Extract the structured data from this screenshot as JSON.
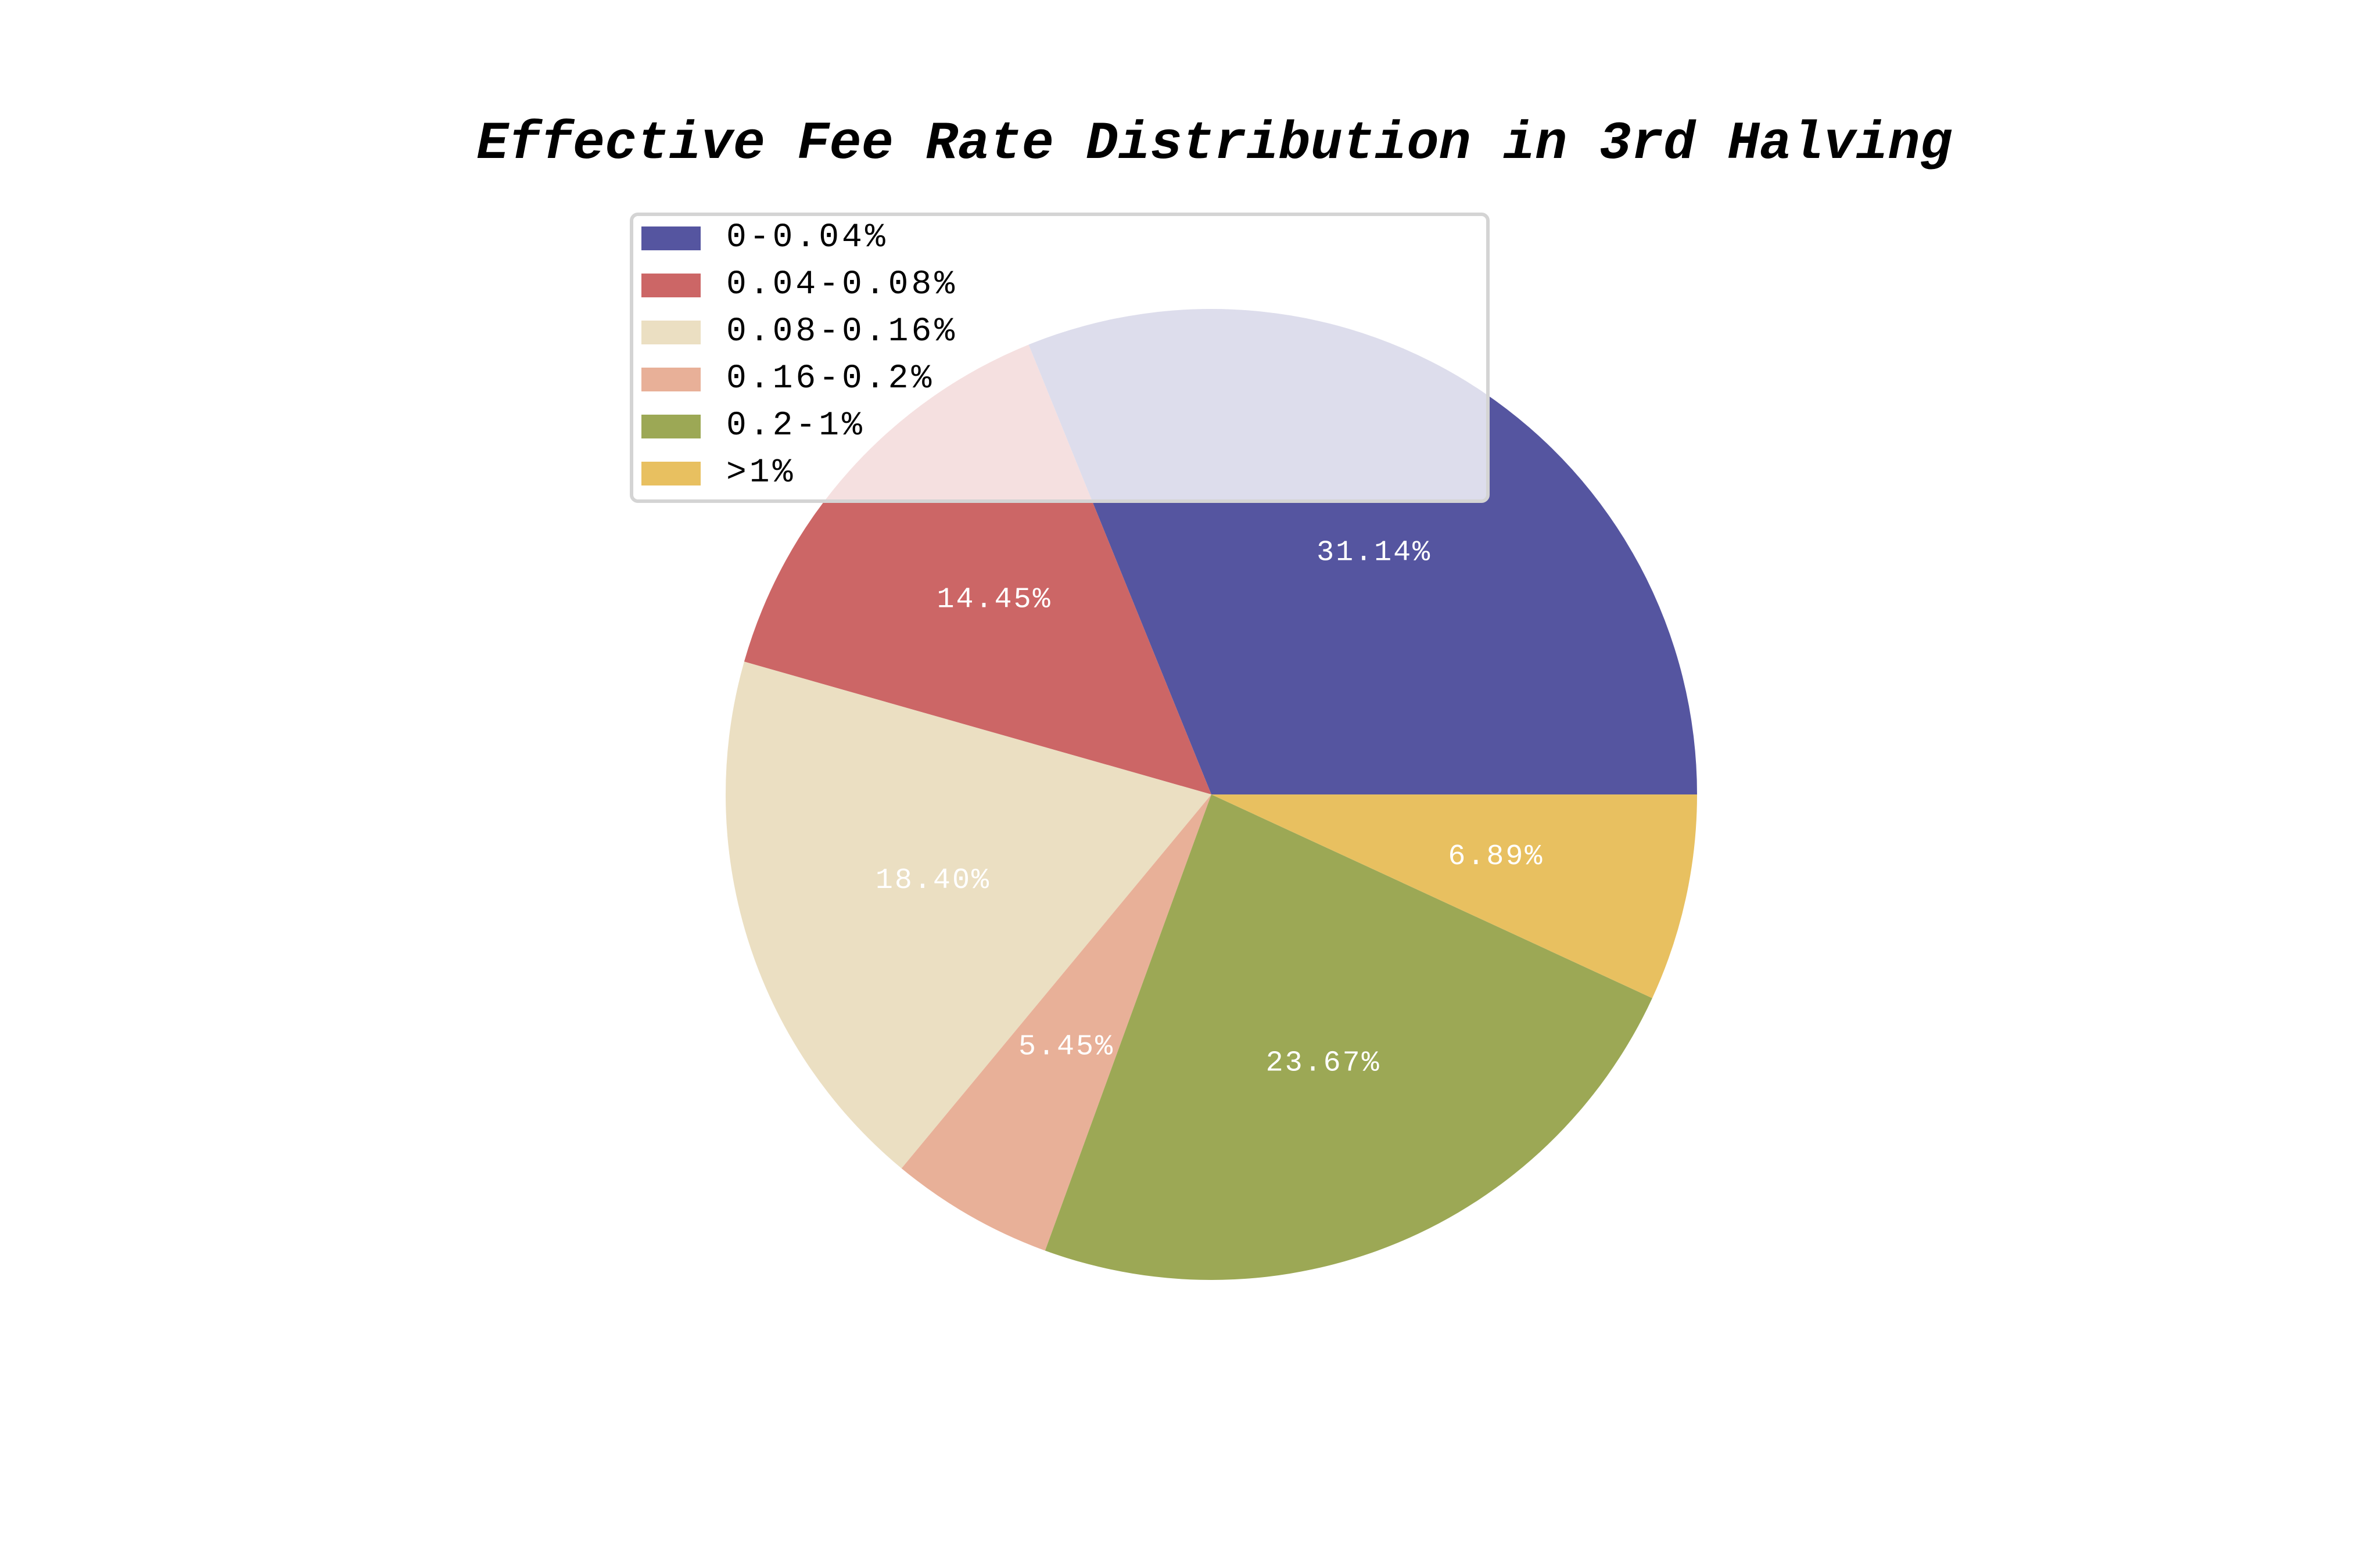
{
  "chart_data": {
    "type": "pie",
    "title": "Effective Fee Rate Distribution in 3rd Halving",
    "categories": [
      "0-0.04%",
      "0.04-0.08%",
      "0.08-0.16%",
      "0.16-0.2%",
      "0.2-1%",
      ">1%"
    ],
    "values": [
      31.14,
      14.45,
      18.4,
      5.45,
      23.67,
      6.89
    ],
    "labels": [
      "31.14%",
      "14.45%",
      "18.40%",
      "5.45%",
      "23.67%",
      "6.89%"
    ],
    "colors": [
      "#5555a0",
      "#cc6666",
      "#ebdfc2",
      "#e8b098",
      "#9ca855",
      "#e8c060"
    ],
    "start_angle": 0,
    "direction": "counterclockwise",
    "legend_position": "upper-left"
  }
}
